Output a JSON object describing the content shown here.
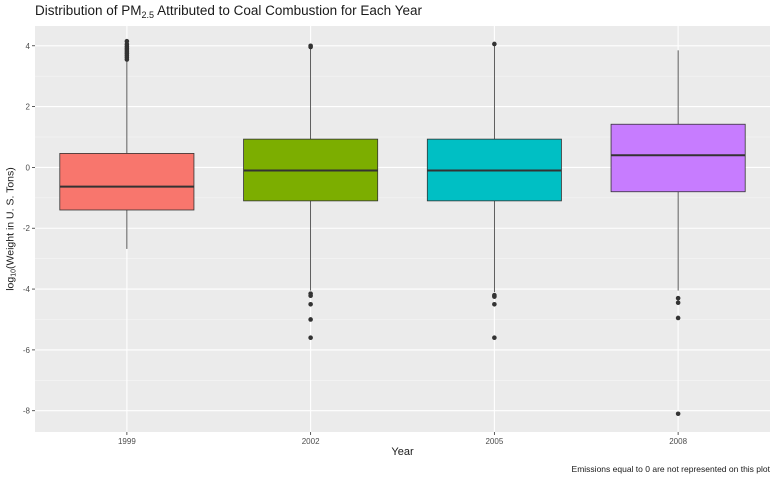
{
  "chart_data": {
    "type": "boxplot",
    "title": "Distribution of PM",
    "title_sub": "2.5",
    "title_rest": " Attributed to Coal Combustion for Each Year",
    "xlabel": "Year",
    "ylabel_pre": "log",
    "ylabel_sub": "10",
    "ylabel_rest": "(Weight in U. S. Tons)",
    "caption": "Emissions equal to 0 are not represented on this plot",
    "ylim": [
      -8.7,
      4.65
    ],
    "yticks": [
      -8,
      -6,
      -4,
      -2,
      0,
      2,
      4
    ],
    "grid": true,
    "legend": "none",
    "categories": [
      "1999",
      "2002",
      "2005",
      "2008"
    ],
    "boxes": [
      {
        "x": "1999",
        "lower_whisker": -2.68,
        "q1": -1.4,
        "median": -0.63,
        "q3": 0.46,
        "upper_whisker": 3.5,
        "outliers": [
          3.55,
          3.62,
          3.68,
          3.74,
          3.8,
          3.86,
          3.92,
          3.98,
          4.05,
          4.15
        ],
        "color": "#F8766D"
      },
      {
        "x": "2002",
        "lower_whisker": -4.05,
        "q1": -1.1,
        "median": -0.1,
        "q3": 0.93,
        "upper_whisker": 3.92,
        "outliers": [
          3.96,
          4.0,
          -4.15,
          -4.22,
          -4.5,
          -5.0,
          -5.6
        ],
        "color": "#7CAE00"
      },
      {
        "x": "2005",
        "lower_whisker": -4.1,
        "q1": -1.1,
        "median": -0.1,
        "q3": 0.93,
        "upper_whisker": 4.0,
        "outliers": [
          4.06,
          -4.2,
          -4.25,
          -4.5,
          -5.6
        ],
        "color": "#00BFC4"
      },
      {
        "x": "2008",
        "lower_whisker": -4.05,
        "q1": -0.8,
        "median": 0.4,
        "q3": 1.42,
        "upper_whisker": 3.85,
        "outliers": [
          -4.3,
          -4.45,
          -4.95,
          -8.1
        ],
        "color": "#C77CFF"
      }
    ]
  }
}
